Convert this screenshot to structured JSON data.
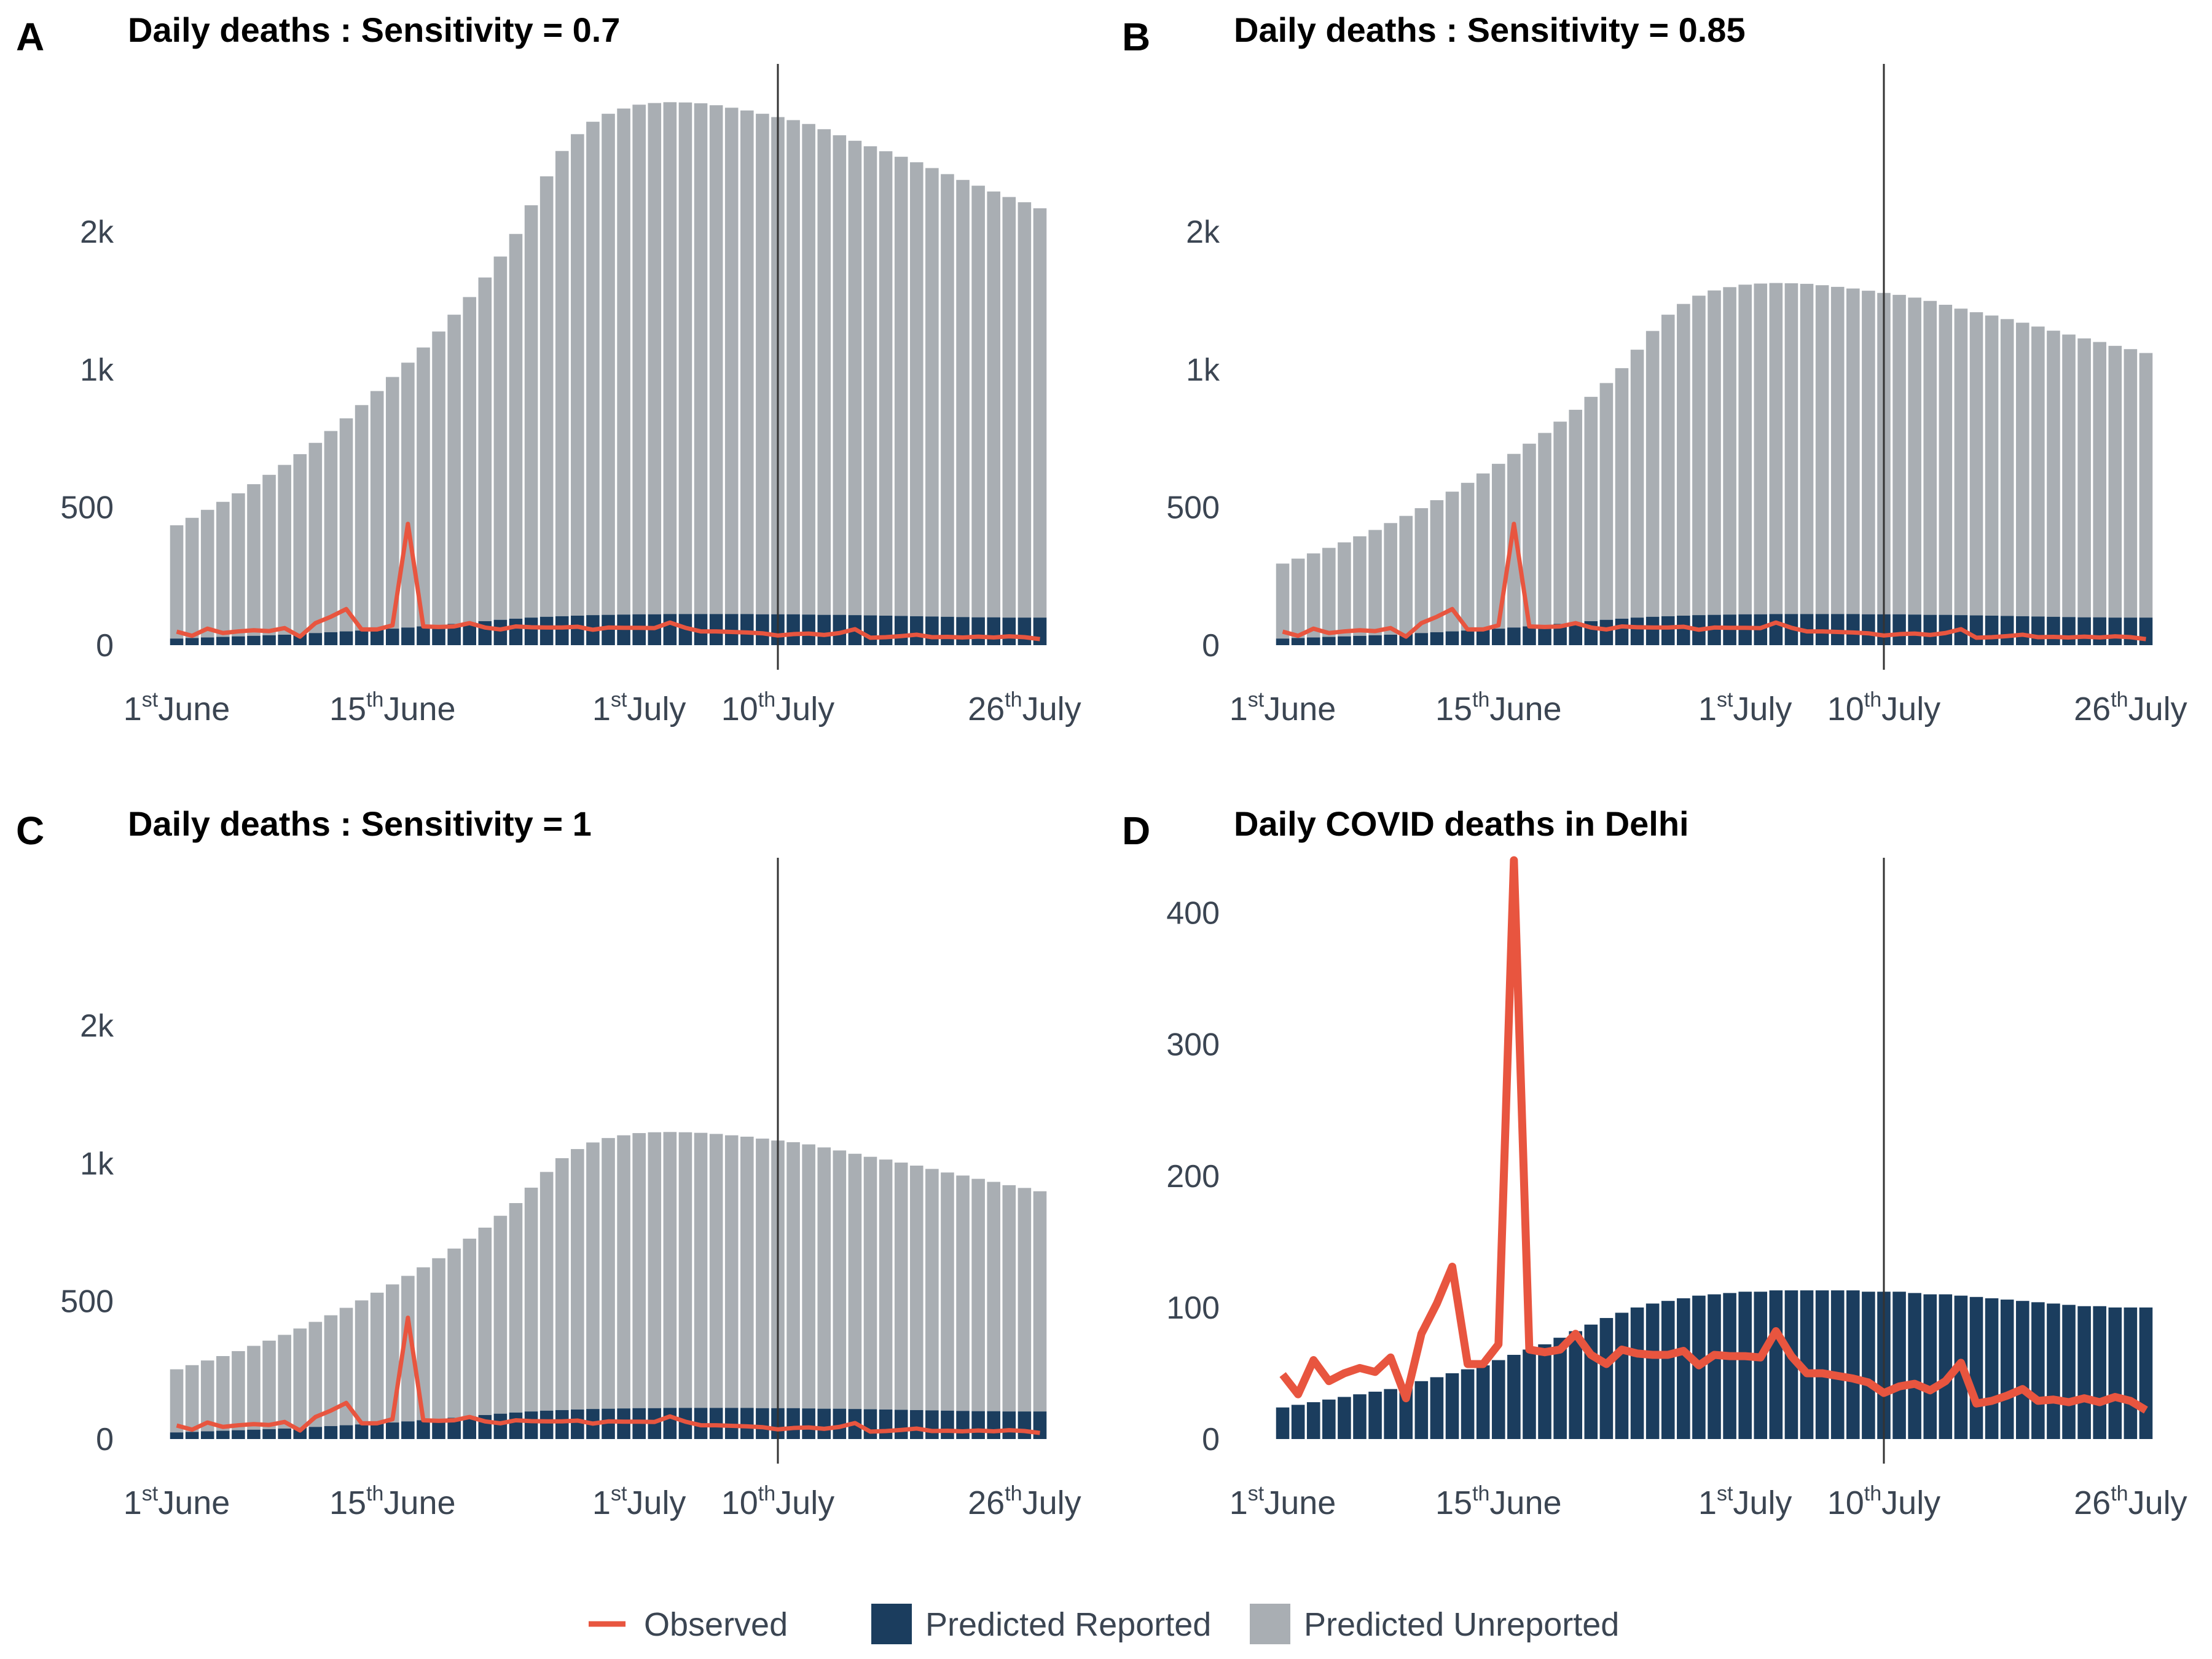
{
  "colors": {
    "observed": "#e8553f",
    "predicted_reported": "#1b3d5e",
    "predicted_unreported": "#a9aeb3",
    "vline": "#333333",
    "text": "#3b4552"
  },
  "legend": {
    "position": "bottom",
    "items": [
      {
        "label": "Observed",
        "type": "line",
        "color_key": "observed"
      },
      {
        "label": "Predicted Reported",
        "type": "box",
        "color_key": "predicted_reported"
      },
      {
        "label": "Predicted Unreported",
        "type": "box",
        "color_key": "predicted_unreported"
      }
    ]
  },
  "chart_data": [
    {
      "letter": "A",
      "title": "Daily deaths : Sensitivity = 0.7",
      "type": "bar",
      "stacked": true,
      "ylim": [
        0,
        2100
      ],
      "yticks": [
        0,
        500,
        1000,
        1500
      ],
      "ytick_labels": [
        "0",
        "500",
        "1k",
        "2k"
      ],
      "vline_day": 40,
      "x_ticks": [
        {
          "day": 1,
          "num": "1",
          "sup": "st",
          "month": "June"
        },
        {
          "day": 15,
          "num": "15",
          "sup": "th",
          "month": "June"
        },
        {
          "day": 31,
          "num": "1",
          "sup": "st",
          "month": "July"
        },
        {
          "day": 40,
          "num": "10",
          "sup": "th",
          "month": "July"
        },
        {
          "day": 56,
          "num": "26",
          "sup": "th",
          "month": "July"
        }
      ],
      "series": [
        {
          "name": "Predicted Reported",
          "values": [
            24,
            26,
            28,
            30,
            32,
            34,
            36,
            38,
            41,
            44,
            47,
            50,
            53,
            56,
            60,
            64,
            68,
            72,
            77,
            82,
            87,
            92,
            96,
            100,
            103,
            105,
            107,
            109,
            110,
            111,
            112,
            112,
            113,
            113,
            113,
            113,
            113,
            113,
            112,
            112,
            112,
            111,
            110,
            110,
            109,
            108,
            107,
            106,
            105,
            104,
            103,
            102,
            101,
            101,
            100,
            100,
            100
          ]
        },
        {
          "name": "Predicted Unreported",
          "values": [
            411,
            436,
            463,
            490,
            519,
            550,
            582,
            616,
            652,
            690,
            730,
            773,
            818,
            866,
            913,
            961,
            1012,
            1066,
            1122,
            1181,
            1247,
            1318,
            1396,
            1496,
            1598,
            1688,
            1747,
            1790,
            1818,
            1836,
            1849,
            1855,
            1857,
            1856,
            1853,
            1846,
            1837,
            1827,
            1816,
            1804,
            1793,
            1780,
            1762,
            1740,
            1721,
            1702,
            1685,
            1666,
            1647,
            1627,
            1606,
            1586,
            1566,
            1545,
            1526,
            1507,
            1485
          ]
        },
        {
          "name": "Observed",
          "values": [
            49,
            34,
            60,
            44,
            50,
            54,
            51,
            62,
            31,
            80,
            103,
            131,
            57,
            57,
            72,
            440,
            68,
            66,
            68,
            80,
            64,
            57,
            68,
            65,
            64,
            64,
            67,
            56,
            64,
            63,
            63,
            62,
            82,
            63,
            50,
            50,
            48,
            46,
            43,
            35,
            40,
            42,
            37,
            44,
            58,
            27,
            29,
            33,
            38,
            29,
            30,
            28,
            31,
            28,
            32,
            29,
            22
          ]
        }
      ]
    },
    {
      "letter": "B",
      "title": "Daily deaths : Sensitivity = 0.85",
      "type": "bar",
      "stacked": true,
      "ylim": [
        0,
        2100
      ],
      "yticks": [
        0,
        500,
        1000,
        1500
      ],
      "ytick_labels": [
        "0",
        "500",
        "1k",
        "2k"
      ],
      "vline_day": 40,
      "x_ticks": [
        {
          "day": 1,
          "num": "1",
          "sup": "st",
          "month": "June"
        },
        {
          "day": 15,
          "num": "15",
          "sup": "th",
          "month": "June"
        },
        {
          "day": 31,
          "num": "1",
          "sup": "st",
          "month": "July"
        },
        {
          "day": 40,
          "num": "10",
          "sup": "th",
          "month": "July"
        },
        {
          "day": 56,
          "num": "26",
          "sup": "th",
          "month": "July"
        }
      ],
      "series": [
        {
          "name": "Predicted Reported",
          "values": [
            24,
            26,
            28,
            30,
            32,
            34,
            36,
            38,
            41,
            44,
            47,
            50,
            53,
            56,
            60,
            64,
            68,
            72,
            77,
            82,
            87,
            92,
            96,
            100,
            103,
            105,
            107,
            109,
            110,
            111,
            112,
            112,
            113,
            113,
            113,
            113,
            113,
            113,
            112,
            112,
            112,
            111,
            110,
            110,
            109,
            108,
            107,
            106,
            105,
            104,
            103,
            102,
            101,
            101,
            100,
            100,
            100
          ]
        },
        {
          "name": "Predicted Unreported",
          "values": [
            272,
            288,
            305,
            323,
            341,
            361,
            382,
            405,
            428,
            453,
            479,
            507,
            536,
            567,
            598,
            630,
            663,
            698,
            734,
            772,
            814,
            859,
            909,
            972,
            1037,
            1094,
            1131,
            1159,
            1177,
            1188,
            1196,
            1200,
            1201,
            1200,
            1198,
            1193,
            1187,
            1181,
            1174,
            1166,
            1159,
            1150,
            1139,
            1125,
            1112,
            1100,
            1089,
            1077,
            1065,
            1052,
            1038,
            1025,
            1012,
            999,
            986,
            974,
            960
          ]
        },
        {
          "name": "Observed",
          "values": [
            49,
            34,
            60,
            44,
            50,
            54,
            51,
            62,
            31,
            80,
            103,
            131,
            57,
            57,
            72,
            440,
            68,
            66,
            68,
            80,
            64,
            57,
            68,
            65,
            64,
            64,
            67,
            56,
            64,
            63,
            63,
            62,
            82,
            63,
            50,
            50,
            48,
            46,
            43,
            35,
            40,
            42,
            37,
            44,
            58,
            27,
            29,
            33,
            38,
            29,
            30,
            28,
            31,
            28,
            32,
            29,
            22
          ]
        }
      ]
    },
    {
      "letter": "C",
      "title": "Daily deaths : Sensitivity = 1",
      "type": "bar",
      "stacked": true,
      "ylim": [
        0,
        2100
      ],
      "yticks": [
        0,
        500,
        1000,
        1500
      ],
      "ytick_labels": [
        "0",
        "500",
        "1k",
        "2k"
      ],
      "vline_day": 40,
      "x_ticks": [
        {
          "day": 1,
          "num": "1",
          "sup": "st",
          "month": "June"
        },
        {
          "day": 15,
          "num": "15",
          "sup": "th",
          "month": "June"
        },
        {
          "day": 31,
          "num": "1",
          "sup": "st",
          "month": "July"
        },
        {
          "day": 40,
          "num": "10",
          "sup": "th",
          "month": "July"
        },
        {
          "day": 56,
          "num": "26",
          "sup": "th",
          "month": "July"
        }
      ],
      "series": [
        {
          "name": "Predicted Reported",
          "values": [
            24,
            26,
            28,
            30,
            32,
            34,
            36,
            38,
            41,
            44,
            47,
            50,
            53,
            56,
            60,
            64,
            68,
            72,
            77,
            82,
            87,
            92,
            96,
            100,
            103,
            105,
            107,
            109,
            110,
            111,
            112,
            112,
            113,
            113,
            113,
            113,
            113,
            113,
            112,
            112,
            112,
            111,
            110,
            110,
            109,
            108,
            107,
            106,
            105,
            104,
            103,
            102,
            101,
            101,
            100,
            100,
            100
          ]
        },
        {
          "name": "Predicted Unreported",
          "values": [
            229,
            242,
            257,
            271,
            287,
            304,
            321,
            340,
            360,
            381,
            402,
            426,
            450,
            475,
            501,
            528,
            555,
            584,
            614,
            645,
            680,
            718,
            760,
            812,
            866,
            914,
            945,
            967,
            982,
            991,
            998,
            1001,
            1001,
            1000,
            998,
            994,
            989,
            984,
            978,
            971,
            965,
            958,
            948,
            937,
            926,
            916,
            907,
            897,
            887,
            876,
            864,
            854,
            843,
            832,
            821,
            811,
            799
          ]
        },
        {
          "name": "Observed",
          "values": [
            49,
            34,
            60,
            44,
            50,
            54,
            51,
            62,
            31,
            80,
            103,
            131,
            57,
            57,
            72,
            440,
            68,
            66,
            68,
            80,
            64,
            57,
            68,
            65,
            64,
            64,
            67,
            56,
            64,
            63,
            63,
            62,
            82,
            63,
            50,
            50,
            48,
            46,
            43,
            35,
            40,
            42,
            37,
            44,
            58,
            27,
            29,
            33,
            38,
            29,
            30,
            28,
            31,
            28,
            32,
            29,
            22
          ]
        }
      ]
    },
    {
      "letter": "D",
      "title": "Daily COVID deaths in Delhi",
      "type": "bar",
      "stacked": false,
      "ylim": [
        0,
        440
      ],
      "yticks": [
        0,
        100,
        200,
        300,
        400
      ],
      "ytick_labels": [
        "0",
        "100",
        "200",
        "300",
        "400"
      ],
      "vline_day": 40,
      "x_ticks": [
        {
          "day": 1,
          "num": "1",
          "sup": "st",
          "month": "June"
        },
        {
          "day": 15,
          "num": "15",
          "sup": "th",
          "month": "June"
        },
        {
          "day": 31,
          "num": "1",
          "sup": "st",
          "month": "July"
        },
        {
          "day": 40,
          "num": "10",
          "sup": "th",
          "month": "July"
        },
        {
          "day": 56,
          "num": "26",
          "sup": "th",
          "month": "July"
        }
      ],
      "series": [
        {
          "name": "Predicted Reported",
          "values": [
            24,
            26,
            28,
            30,
            32,
            34,
            36,
            38,
            41,
            44,
            47,
            50,
            53,
            56,
            60,
            64,
            68,
            72,
            77,
            82,
            87,
            92,
            96,
            100,
            103,
            105,
            107,
            109,
            110,
            111,
            112,
            112,
            113,
            113,
            113,
            113,
            113,
            113,
            112,
            112,
            112,
            111,
            110,
            110,
            109,
            108,
            107,
            106,
            105,
            104,
            103,
            102,
            101,
            101,
            100,
            100,
            100
          ]
        },
        {
          "name": "Observed",
          "values": [
            49,
            34,
            60,
            44,
            50,
            54,
            51,
            62,
            31,
            80,
            103,
            131,
            57,
            57,
            72,
            440,
            68,
            66,
            68,
            80,
            64,
            57,
            68,
            65,
            64,
            64,
            67,
            56,
            64,
            63,
            63,
            62,
            82,
            63,
            50,
            50,
            48,
            46,
            43,
            35,
            40,
            42,
            37,
            44,
            58,
            27,
            29,
            33,
            38,
            29,
            30,
            28,
            31,
            28,
            32,
            29,
            22
          ]
        }
      ]
    }
  ]
}
